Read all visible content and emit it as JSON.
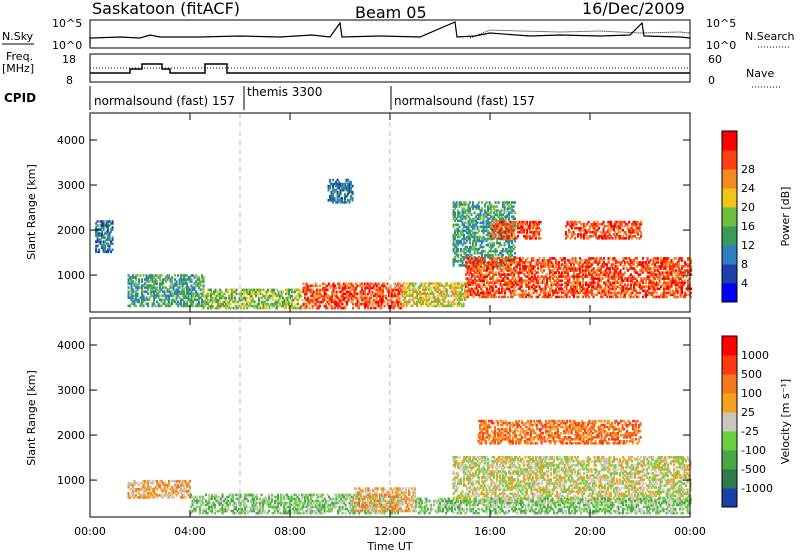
{
  "header": {
    "station": "Saskatoon (fitACF)",
    "beam": "Beam 05",
    "date": "16/Dec/2009"
  },
  "noise_panel": {
    "left_label": "N.Sky",
    "right_label": "N.Search",
    "left_ticks": [
      "10^5",
      "10^0"
    ],
    "right_ticks": [
      "10^5",
      "10^0"
    ]
  },
  "freq_panel": {
    "left_label": "Freq.",
    "left_unit": "[MHz]",
    "right_label": "Nave",
    "left_ticks": [
      "18",
      "8"
    ],
    "right_ticks": [
      "60",
      "0"
    ]
  },
  "cpid_panel": {
    "label": "CPID",
    "segments": [
      "normalsound (fast) 157",
      "themis 3300",
      "normalsound (fast) 157"
    ]
  },
  "chart_data": [
    {
      "type": "heatmap",
      "title": "",
      "xlabel": "",
      "ylabel": "Slant Range [km]",
      "xlim": [
        0,
        24
      ],
      "ylim": [
        180,
        4600
      ],
      "x_ticks": [
        "00:00",
        "04:00",
        "08:00",
        "12:00",
        "16:00",
        "20:00",
        "00:00"
      ],
      "y_ticks": [
        "1000",
        "2000",
        "3000",
        "4000"
      ],
      "dashed_lines_hours": [
        6,
        12
      ],
      "colorbar": {
        "label": "Power [dB]",
        "ticks": [
          "4",
          "8",
          "12",
          "16",
          "20",
          "24",
          "28"
        ],
        "colors": [
          "#0000ff",
          "#1e3fa8",
          "#2e7fbf",
          "#3a9a5a",
          "#6fbf3f",
          "#f2c418",
          "#f58a1f",
          "#ff4010",
          "#ff0000"
        ]
      },
      "echo_regions": [
        {
          "hours": [
            0.2,
            0.9
          ],
          "range_km": [
            1500,
            2200
          ],
          "level": 2
        },
        {
          "hours": [
            1.5,
            4.5
          ],
          "range_km": [
            300,
            1000
          ],
          "level": 3
        },
        {
          "hours": [
            4.5,
            8.5
          ],
          "range_km": [
            250,
            700
          ],
          "level": 4
        },
        {
          "hours": [
            8.5,
            12.5
          ],
          "range_km": [
            250,
            800
          ],
          "level": 7
        },
        {
          "hours": [
            9.5,
            10.5
          ],
          "range_km": [
            2600,
            3100
          ],
          "level": 2
        },
        {
          "hours": [
            12.5,
            15
          ],
          "range_km": [
            300,
            800
          ],
          "level": 5
        },
        {
          "hours": [
            14.5,
            17
          ],
          "range_km": [
            1200,
            2600
          ],
          "level": 3
        },
        {
          "hours": [
            16,
            18
          ],
          "range_km": [
            1800,
            2200
          ],
          "level": 7
        },
        {
          "hours": [
            19,
            22
          ],
          "range_km": [
            1800,
            2200
          ],
          "level": 7
        },
        {
          "hours": [
            15,
            24
          ],
          "range_km": [
            500,
            1400
          ],
          "level": 7
        }
      ]
    },
    {
      "type": "heatmap",
      "title": "",
      "xlabel": "Time UT",
      "ylabel": "Slant Range [km]",
      "xlim": [
        0,
        24
      ],
      "ylim": [
        180,
        4600
      ],
      "x_ticks": [
        "00:00",
        "04:00",
        "08:00",
        "12:00",
        "16:00",
        "20:00",
        "00:00"
      ],
      "y_ticks": [
        "1000",
        "2000",
        "3000",
        "4000"
      ],
      "dashed_lines_hours": [
        6,
        12
      ],
      "colorbar": {
        "label": "Velocity [m s⁻¹]",
        "ticks": [
          "1000",
          "500",
          "100",
          "25",
          "-25",
          "-100",
          "-500",
          "-1000"
        ],
        "colors": [
          "#1a3fa8",
          "#2e7a4a",
          "#48a848",
          "#6ad040",
          "#c8c8c0",
          "#f5a01f",
          "#f57a1f",
          "#ff3a10",
          "#ff0000"
        ]
      },
      "echo_regions": [
        {
          "hours": [
            1.5,
            4.0
          ],
          "range_km": [
            600,
            1000
          ],
          "level": 5
        },
        {
          "hours": [
            4.0,
            12.5
          ],
          "range_km": [
            250,
            700
          ],
          "level": 3
        },
        {
          "hours": [
            10.5,
            13.0
          ],
          "range_km": [
            300,
            800
          ],
          "level": 5
        },
        {
          "hours": [
            14.5,
            24
          ],
          "range_km": [
            500,
            1500
          ],
          "level": 4
        },
        {
          "hours": [
            15.5,
            22
          ],
          "range_km": [
            1800,
            2300
          ],
          "level": 6
        },
        {
          "hours": [
            13,
            24
          ],
          "range_km": [
            250,
            600
          ],
          "level": 3
        }
      ]
    }
  ],
  "colors": {
    "axis": "#000000",
    "background": "#ffffff",
    "dashed": "#bbbbbb"
  }
}
